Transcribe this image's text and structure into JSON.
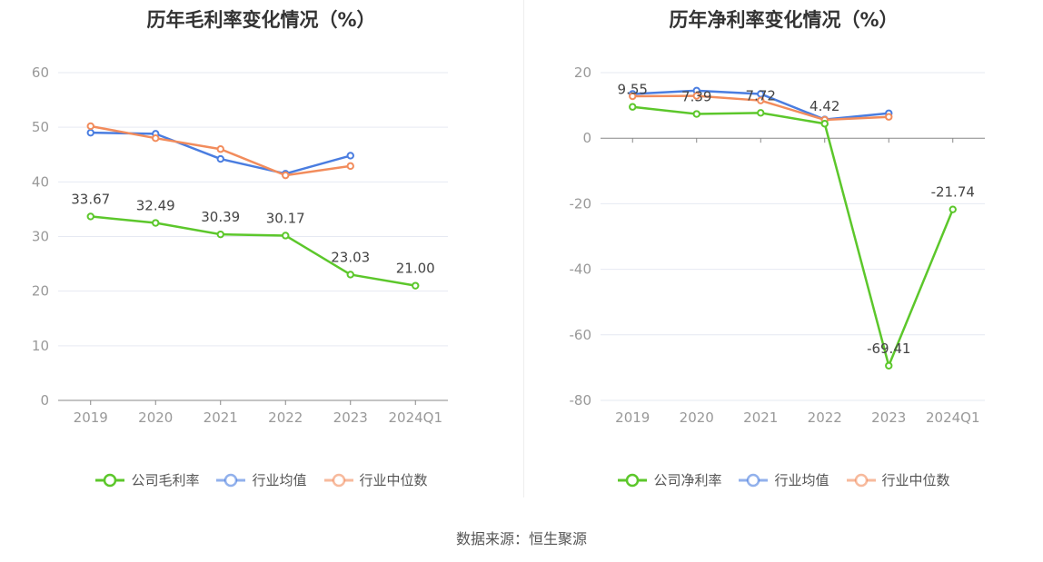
{
  "source": "数据来源：恒生聚源",
  "legend_colors": {
    "公司": "#5cc72b",
    "行业均值": "#4a7de0",
    "行业中位数": "#f28c5c"
  },
  "chart_data": [
    {
      "type": "line",
      "title": "历年毛利率变化情况（%）",
      "categories": [
        "2019",
        "2020",
        "2021",
        "2022",
        "2023",
        "2024Q1"
      ],
      "ylim": [
        0,
        60
      ],
      "yticks": [
        "0",
        "10",
        "20",
        "30",
        "40",
        "50",
        "60"
      ],
      "grid": true,
      "legend_position": "bottom",
      "series": [
        {
          "name": "公司毛利率",
          "color": "#5cc72b",
          "values": [
            33.67,
            32.49,
            30.39,
            30.17,
            23.03,
            21.0
          ],
          "labels": [
            "33.67",
            "32.49",
            "30.39",
            "30.17",
            "23.03",
            "21.00"
          ]
        },
        {
          "name": "行业均值",
          "color": "#4a7de0",
          "values": [
            49.0,
            48.8,
            44.2,
            41.5,
            44.8,
            null
          ]
        },
        {
          "name": "行业中位数",
          "color": "#f28c5c",
          "values": [
            50.2,
            48.0,
            46.0,
            41.2,
            42.9,
            null
          ]
        }
      ]
    },
    {
      "type": "line",
      "title": "历年净利率变化情况（%）",
      "categories": [
        "2019",
        "2020",
        "2021",
        "2022",
        "2023",
        "2024Q1"
      ],
      "ylim": [
        -80,
        20
      ],
      "yticks": [
        "-80",
        "-60",
        "-40",
        "-20",
        "0",
        "20"
      ],
      "grid": true,
      "legend_position": "bottom",
      "series": [
        {
          "name": "公司净利率",
          "color": "#5cc72b",
          "values": [
            9.55,
            7.39,
            7.72,
            4.42,
            -69.41,
            -21.74
          ],
          "labels": [
            "9.55",
            "7.39",
            "7.72",
            "4.42",
            "-69.41",
            "-21.74"
          ]
        },
        {
          "name": "行业均值",
          "color": "#4a7de0",
          "values": [
            13.5,
            14.5,
            13.5,
            5.7,
            7.6,
            null
          ]
        },
        {
          "name": "行业中位数",
          "color": "#f28c5c",
          "values": [
            12.8,
            12.9,
            11.5,
            5.6,
            6.5,
            null
          ]
        }
      ]
    }
  ]
}
